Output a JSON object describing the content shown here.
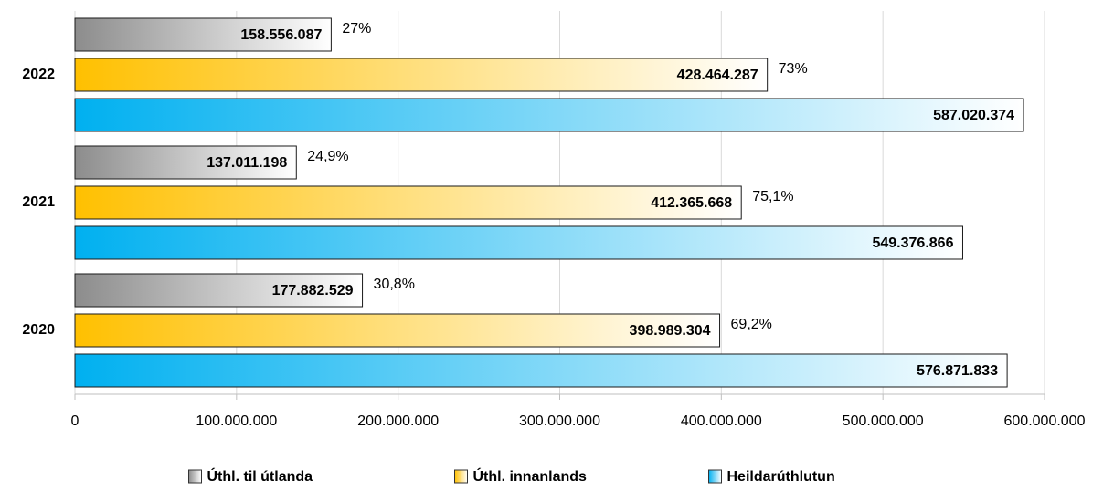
{
  "chart_data": {
    "type": "hbar",
    "categories": [
      "2022",
      "2021",
      "2020"
    ],
    "series": [
      {
        "name": "Úthl. til útlanda",
        "color": "#8c8c8c",
        "values": [
          158556087,
          137011198,
          177882529
        ],
        "value_labels": [
          "158.556.087",
          "137.011.198",
          "177.882.529"
        ],
        "shares": [
          27,
          24.9,
          30.8
        ],
        "share_labels": [
          "27%",
          "24,9%",
          "30,8%"
        ]
      },
      {
        "name": "Úthl. innanlands",
        "color": "#ffc000",
        "values": [
          428464287,
          412365668,
          398989304
        ],
        "value_labels": [
          "428.464.287",
          "412.365.668",
          "398.989.304"
        ],
        "shares": [
          73,
          75.1,
          69.2
        ],
        "share_labels": [
          "73%",
          "75,1%",
          "69,2%"
        ]
      },
      {
        "name": "Heildarúthlutun",
        "color": "#00b0f0",
        "values": [
          587020374,
          549376866,
          576871833
        ],
        "value_labels": [
          "587.020.374",
          "549.376.866",
          "576.871.833"
        ]
      }
    ],
    "xlim": [
      0,
      600000000
    ],
    "xticks": [
      0,
      {
        "value": 100000000,
        "label": "100.000.000"
      },
      {
        "value": 200000000,
        "label": "200.000.000"
      },
      {
        "value": 300000000,
        "label": "300.000.000"
      },
      {
        "value": 400000000,
        "label": "400.000.000"
      },
      {
        "value": 500000000,
        "label": "500.000.000"
      },
      {
        "value": 600000000,
        "label": "600.000.000"
      }
    ],
    "grid": true,
    "legend": "bottom"
  }
}
